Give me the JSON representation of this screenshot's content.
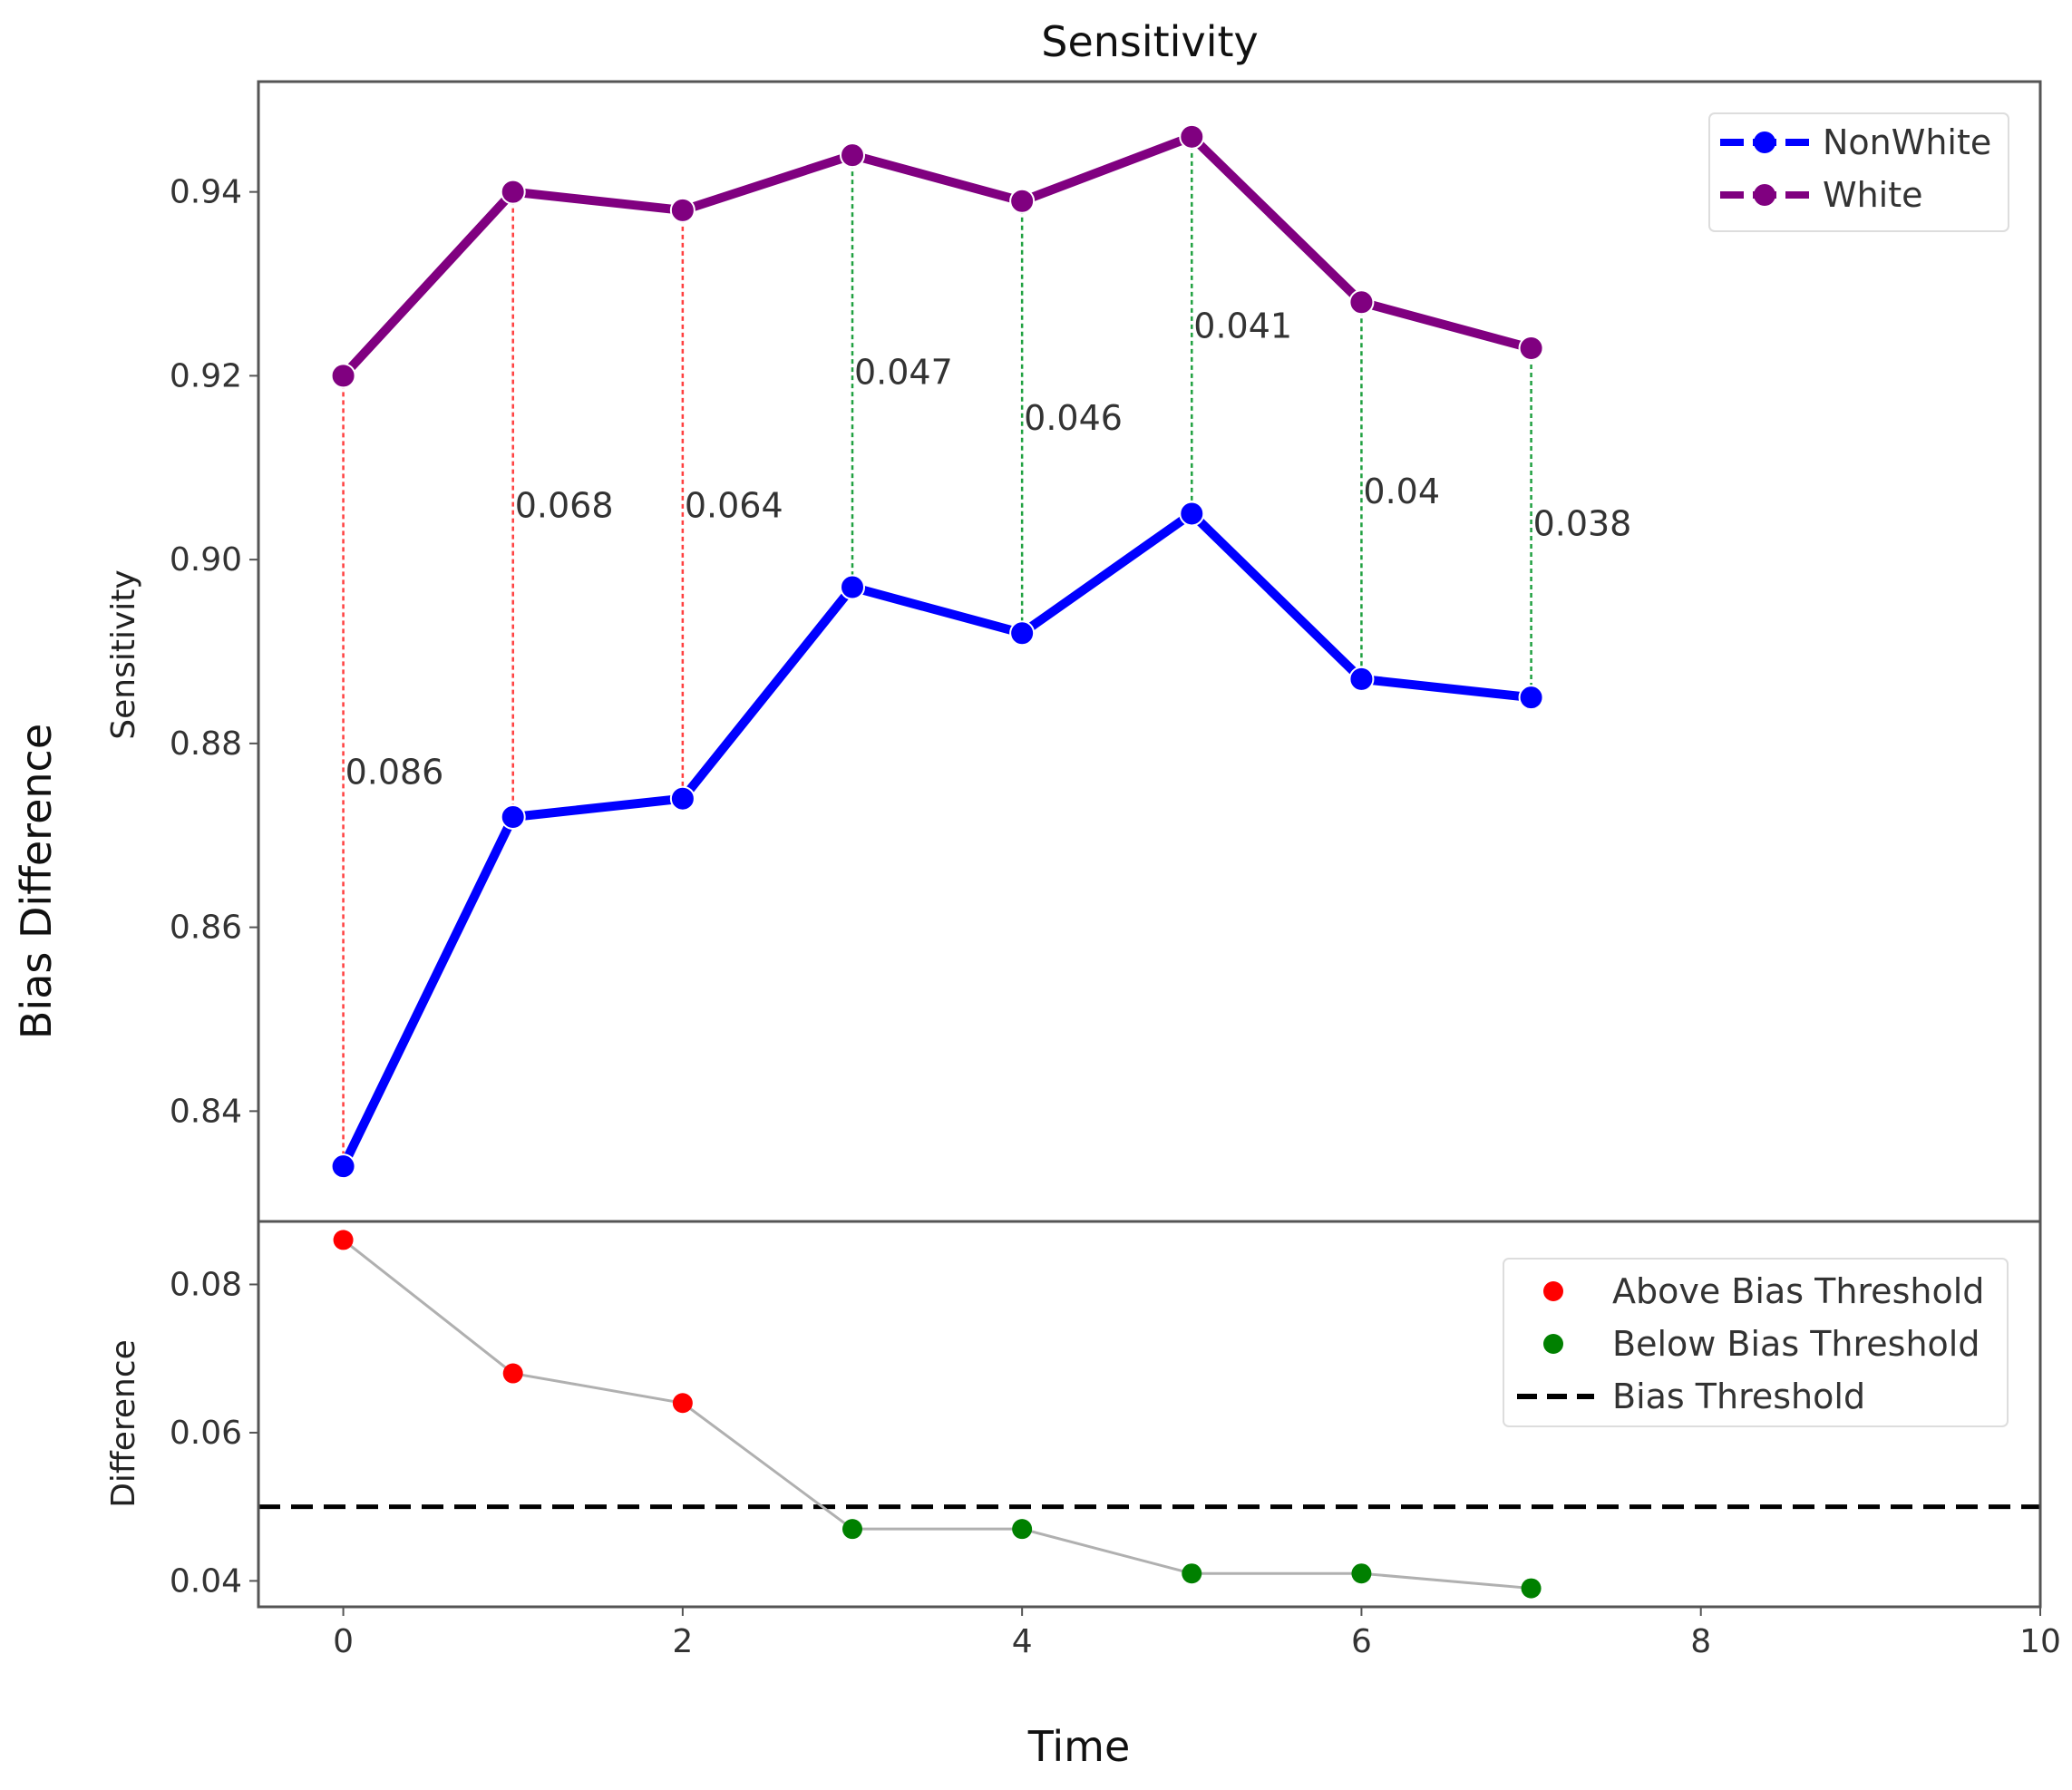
{
  "figure": {
    "xlabel_shared": "Time",
    "ylabel_shared": "Bias Difference"
  },
  "chart_data": [
    {
      "type": "line",
      "title": "Sensitivity",
      "xlabel": "",
      "ylabel": "Sensitivity",
      "x": [
        0,
        1,
        2,
        3,
        4,
        5,
        6,
        7
      ],
      "xlim": [
        -0.5,
        10
      ],
      "ylim": [
        0.828,
        0.952
      ],
      "yticks": [
        0.84,
        0.86,
        0.88,
        0.9,
        0.92,
        0.94
      ],
      "ytick_labels": [
        "0.84",
        "0.86",
        "0.88",
        "0.90",
        "0.92",
        "0.94"
      ],
      "series": [
        {
          "name": "NonWhite",
          "color": "#0000ff",
          "values": [
            0.834,
            0.872,
            0.874,
            0.897,
            0.892,
            0.905,
            0.887,
            0.885
          ]
        },
        {
          "name": "White",
          "color": "#800080",
          "values": [
            0.92,
            0.94,
            0.938,
            0.944,
            0.939,
            0.946,
            0.928,
            0.923
          ]
        }
      ],
      "gap_annotations": [
        {
          "x": 0,
          "label": "0.086",
          "status": "above"
        },
        {
          "x": 1,
          "label": "0.068",
          "status": "above"
        },
        {
          "x": 2,
          "label": "0.064",
          "status": "above"
        },
        {
          "x": 3,
          "label": "0.047",
          "status": "below"
        },
        {
          "x": 4,
          "label": "0.046",
          "status": "below"
        },
        {
          "x": 5,
          "label": "0.041",
          "status": "below"
        },
        {
          "x": 6,
          "label": "0.04",
          "status": "below"
        },
        {
          "x": 7,
          "label": "0.038",
          "status": "below"
        }
      ],
      "legend_position": "top-right",
      "grid": false
    },
    {
      "type": "scatter",
      "title": "",
      "xlabel": "",
      "ylabel": "Difference",
      "x": [
        0,
        1,
        2,
        3,
        4,
        5,
        6,
        7
      ],
      "values": [
        0.086,
        0.068,
        0.064,
        0.047,
        0.047,
        0.041,
        0.041,
        0.039
      ],
      "threshold": 0.05,
      "xlim": [
        -0.5,
        10
      ],
      "ylim": [
        0.0365,
        0.0885
      ],
      "xticks": [
        0,
        2,
        4,
        6,
        8,
        10
      ],
      "xtick_labels": [
        "0",
        "2",
        "4",
        "6",
        "8",
        "10"
      ],
      "yticks": [
        0.04,
        0.06,
        0.08
      ],
      "ytick_labels": [
        "0.04",
        "0.06",
        "0.08"
      ],
      "series": [
        {
          "name": "Above Bias Threshold",
          "color": "#ff0000"
        },
        {
          "name": "Below Bias Threshold",
          "color": "#008000"
        },
        {
          "name": "Bias Threshold",
          "color": "#000000"
        }
      ],
      "connector_color": "#b0b0b0",
      "legend_position": "top-right",
      "grid": false
    }
  ]
}
